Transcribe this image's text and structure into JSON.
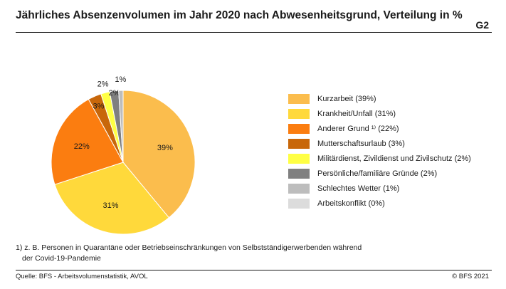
{
  "header": {
    "title": "Jährliches Absenzenvolumen im Jahr 2020 nach Abwesenheitsgrund, Verteilung in %",
    "figure_number": "G2"
  },
  "chart_data": {
    "type": "pie",
    "title": "Jährliches Absenzenvolumen im Jahr 2020 nach Abwesenheitsgrund, Verteilung in %",
    "slices": [
      {
        "name": "Kurzarbeit",
        "legend": "Kurzarbeit (39%)",
        "label": "39%",
        "value": 39,
        "color": "#FBBD4D"
      },
      {
        "name": "Krankheit/Unfall",
        "legend": "Krankheit/Unfall (31%)",
        "label": "31%",
        "value": 31,
        "color": "#FFD93B"
      },
      {
        "name": "Anderer Grund",
        "legend": "Anderer Grund ¹⁾ (22%)",
        "label": "22%",
        "value": 22,
        "color": "#FB7D10"
      },
      {
        "name": "Mutterschaftsurlaub",
        "legend": "Mutterschaftsurlaub (3%)",
        "label": "3%",
        "value": 3,
        "color": "#C8670A"
      },
      {
        "name": "Militärdienst, Zivildienst und Zivilschutz",
        "legend": "Militärdienst, Zivildienst und Zivilschutz (2%)",
        "label": "2%",
        "value": 2,
        "color": "#FFFF44"
      },
      {
        "name": "Persönliche/familiäre Gründe",
        "legend": "Persönliche/familiäre Gründe (2%)",
        "label": "2%",
        "value": 2,
        "color": "#808080"
      },
      {
        "name": "Schlechtes Wetter",
        "legend": "Schlechtes Wetter (1%)",
        "label": "1%",
        "value": 1,
        "color": "#BDBDBD"
      },
      {
        "name": "Arbeitskonflikt",
        "legend": "Arbeitskonflikt (0%)",
        "label": "",
        "value": 0,
        "color": "#DCDCDC"
      }
    ],
    "legend_position": "right"
  },
  "footnote": {
    "marker": "1)",
    "line1": "z. B. Personen in Quarantäne oder Betriebseinschränkungen von Selbstständigerwerbenden während",
    "line2": "der Covid-19-Pandemie"
  },
  "footer": {
    "source": "Quelle: BFS - Arbeitsvolumenstatistik, AVOL",
    "copyright": "© BFS 2021"
  }
}
